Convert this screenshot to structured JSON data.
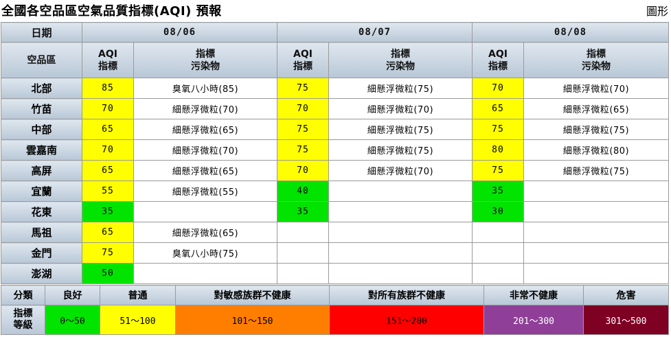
{
  "title": "全國各空品區空氣品質指標(AQI) 預報",
  "graph_link": "圖形",
  "header": {
    "date_label": "日期",
    "region_label": "空品區",
    "aqi_label_1": "AQI",
    "aqi_label_2": "指標",
    "pol_label_1": "指標",
    "pol_label_2": "污染物"
  },
  "dates": [
    "08/06",
    "08/07",
    "08/08"
  ],
  "colors": {
    "good": "#00e400",
    "moderate": "#ffff00",
    "usg": "#ff7e00",
    "unhealthy": "#ff0000",
    "very_unhealthy": "#8f3f97",
    "hazardous": "#7e0023",
    "empty": "#ffffff"
  },
  "rows": [
    {
      "region": "北部",
      "d": [
        {
          "aqi": "85",
          "level": "moderate",
          "pol": "臭氧八小時(85)"
        },
        {
          "aqi": "75",
          "level": "moderate",
          "pol": "細懸浮微粒(75)"
        },
        {
          "aqi": "70",
          "level": "moderate",
          "pol": "細懸浮微粒(70)"
        }
      ]
    },
    {
      "region": "竹苗",
      "d": [
        {
          "aqi": "70",
          "level": "moderate",
          "pol": "細懸浮微粒(70)"
        },
        {
          "aqi": "70",
          "level": "moderate",
          "pol": "細懸浮微粒(70)"
        },
        {
          "aqi": "65",
          "level": "moderate",
          "pol": "細懸浮微粒(65)"
        }
      ]
    },
    {
      "region": "中部",
      "d": [
        {
          "aqi": "65",
          "level": "moderate",
          "pol": "細懸浮微粒(65)"
        },
        {
          "aqi": "75",
          "level": "moderate",
          "pol": "細懸浮微粒(75)"
        },
        {
          "aqi": "75",
          "level": "moderate",
          "pol": "細懸浮微粒(75)"
        }
      ]
    },
    {
      "region": "雲嘉南",
      "d": [
        {
          "aqi": "70",
          "level": "moderate",
          "pol": "細懸浮微粒(70)"
        },
        {
          "aqi": "75",
          "level": "moderate",
          "pol": "細懸浮微粒(75)"
        },
        {
          "aqi": "80",
          "level": "moderate",
          "pol": "細懸浮微粒(80)"
        }
      ]
    },
    {
      "region": "高屏",
      "d": [
        {
          "aqi": "65",
          "level": "moderate",
          "pol": "細懸浮微粒(65)"
        },
        {
          "aqi": "70",
          "level": "moderate",
          "pol": "細懸浮微粒(70)"
        },
        {
          "aqi": "75",
          "level": "moderate",
          "pol": "細懸浮微粒(75)"
        }
      ]
    },
    {
      "region": "宜蘭",
      "d": [
        {
          "aqi": "55",
          "level": "moderate",
          "pol": "細懸浮微粒(55)"
        },
        {
          "aqi": "40",
          "level": "good",
          "pol": ""
        },
        {
          "aqi": "35",
          "level": "good",
          "pol": ""
        }
      ]
    },
    {
      "region": "花東",
      "d": [
        {
          "aqi": "35",
          "level": "good",
          "pol": ""
        },
        {
          "aqi": "35",
          "level": "good",
          "pol": ""
        },
        {
          "aqi": "30",
          "level": "good",
          "pol": ""
        }
      ]
    },
    {
      "region": "馬祖",
      "d": [
        {
          "aqi": "65",
          "level": "moderate",
          "pol": "細懸浮微粒(65)"
        },
        {
          "aqi": "",
          "level": "empty",
          "pol": ""
        },
        {
          "aqi": "",
          "level": "empty",
          "pol": ""
        }
      ]
    },
    {
      "region": "金門",
      "d": [
        {
          "aqi": "75",
          "level": "moderate",
          "pol": "臭氧八小時(75)"
        },
        {
          "aqi": "",
          "level": "empty",
          "pol": ""
        },
        {
          "aqi": "",
          "level": "empty",
          "pol": ""
        }
      ]
    },
    {
      "region": "澎湖",
      "d": [
        {
          "aqi": "50",
          "level": "good",
          "pol": ""
        },
        {
          "aqi": "",
          "level": "empty",
          "pol": ""
        },
        {
          "aqi": "",
          "level": "empty",
          "pol": ""
        }
      ]
    }
  ],
  "legend": {
    "category_label": "分類",
    "index_label_1": "指標",
    "index_label_2": "等級",
    "items": [
      {
        "name": "良好",
        "range": "0～50",
        "level": "good",
        "text_color": "#000000"
      },
      {
        "name": "普通",
        "range": "51～100",
        "level": "moderate",
        "text_color": "#000000"
      },
      {
        "name": "對敏感族群不健康",
        "range": "101～150",
        "level": "usg",
        "text_color": "#000000"
      },
      {
        "name": "對所有族群不健康",
        "range": "151～200",
        "level": "unhealthy",
        "text_color": "#000000"
      },
      {
        "name": "非常不健康",
        "range": "201～300",
        "level": "very_unhealthy",
        "text_color": "#ffffff"
      },
      {
        "name": "危害",
        "range": "301～500",
        "level": "hazardous",
        "text_color": "#ffffff"
      }
    ]
  }
}
